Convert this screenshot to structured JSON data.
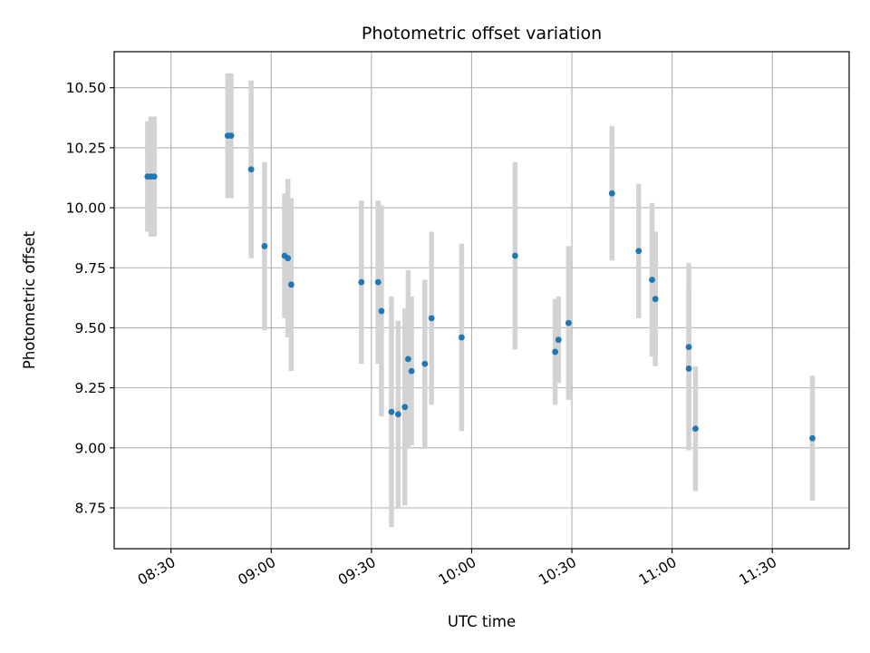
{
  "chart_data": {
    "type": "scatter",
    "title": "Photometric offset variation",
    "xlabel": "UTC time",
    "ylabel": "Photometric offset",
    "grid": true,
    "xlim": [
      "08:13",
      "11:53"
    ],
    "ylim": [
      8.58,
      10.65
    ],
    "x_ticks": [
      "08:30",
      "09:00",
      "09:30",
      "10:00",
      "10:30",
      "11:00",
      "11:30"
    ],
    "y_ticks": [
      "8.75",
      "9.00",
      "9.25",
      "9.50",
      "9.75",
      "10.00",
      "10.25",
      "10.50"
    ],
    "y_tick_values": [
      8.75,
      9.0,
      9.25,
      9.5,
      9.75,
      10.0,
      10.25,
      10.5
    ],
    "point_color": "#1f77b4",
    "errorbar_color": "#d3d3d3",
    "points": [
      {
        "x": "08:23",
        "y": 10.13,
        "err": 0.23
      },
      {
        "x": "08:24",
        "y": 10.13,
        "err": 0.25
      },
      {
        "x": "08:25",
        "y": 10.13,
        "err": 0.25
      },
      {
        "x": "08:47",
        "y": 10.3,
        "err": 0.26
      },
      {
        "x": "08:48",
        "y": 10.3,
        "err": 0.26
      },
      {
        "x": "08:54",
        "y": 10.16,
        "err": 0.37
      },
      {
        "x": "08:58",
        "y": 9.84,
        "err": 0.35
      },
      {
        "x": "09:04",
        "y": 9.8,
        "err": 0.26
      },
      {
        "x": "09:05",
        "y": 9.79,
        "err": 0.33
      },
      {
        "x": "09:06",
        "y": 9.68,
        "err": 0.36
      },
      {
        "x": "09:27",
        "y": 9.69,
        "err": 0.34
      },
      {
        "x": "09:32",
        "y": 9.69,
        "err": 0.34
      },
      {
        "x": "09:33",
        "y": 9.57,
        "err": 0.44
      },
      {
        "x": "09:36",
        "y": 9.15,
        "err": 0.48
      },
      {
        "x": "09:38",
        "y": 9.14,
        "err": 0.39
      },
      {
        "x": "09:40",
        "y": 9.17,
        "err": 0.41
      },
      {
        "x": "09:41",
        "y": 9.37,
        "err": 0.37
      },
      {
        "x": "09:42",
        "y": 9.32,
        "err": 0.31
      },
      {
        "x": "09:46",
        "y": 9.35,
        "err": 0.35
      },
      {
        "x": "09:48",
        "y": 9.54,
        "err": 0.36
      },
      {
        "x": "09:57",
        "y": 9.46,
        "err": 0.39
      },
      {
        "x": "10:13",
        "y": 9.8,
        "err": 0.39
      },
      {
        "x": "10:25",
        "y": 9.4,
        "err": 0.22
      },
      {
        "x": "10:26",
        "y": 9.45,
        "err": 0.18
      },
      {
        "x": "10:29",
        "y": 9.52,
        "err": 0.32
      },
      {
        "x": "10:42",
        "y": 10.06,
        "err": 0.28
      },
      {
        "x": "10:50",
        "y": 9.82,
        "err": 0.28
      },
      {
        "x": "10:54",
        "y": 9.7,
        "err": 0.32
      },
      {
        "x": "10:55",
        "y": 9.62,
        "err": 0.28
      },
      {
        "x": "11:05",
        "y": 9.42,
        "err": 0.35
      },
      {
        "x": "11:05",
        "y": 9.33,
        "err": 0.34
      },
      {
        "x": "11:07",
        "y": 9.08,
        "err": 0.26
      },
      {
        "x": "11:42",
        "y": 9.04,
        "err": 0.26
      }
    ]
  }
}
